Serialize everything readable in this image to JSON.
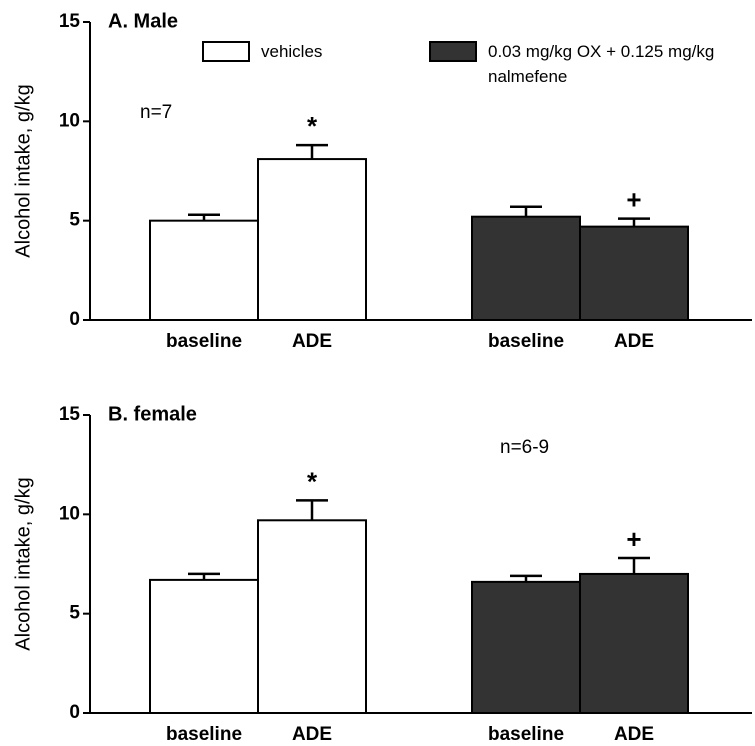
{
  "chart_data": [
    {
      "type": "bar",
      "title": "A. Male",
      "y_label": "Alcohol intake, g/kg",
      "n_label": "n=7",
      "categories": [
        "baseline",
        "ADE"
      ],
      "series": [
        {
          "name": "vehicles",
          "color": "#ffffff",
          "values": [
            5.0,
            8.1
          ],
          "errors": [
            0.3,
            0.7
          ],
          "markers": [
            null,
            "*"
          ]
        },
        {
          "name": "0.03 mg/kg OX + 0.125 mg/kg nalmefene",
          "color": "#333333",
          "values": [
            5.2,
            4.7
          ],
          "errors": [
            0.5,
            0.4
          ],
          "markers": [
            null,
            "+"
          ]
        }
      ],
      "ylim": [
        0,
        15
      ],
      "yticks": [
        0,
        5,
        10,
        15
      ],
      "legend": "top"
    },
    {
      "type": "bar",
      "title": "B. female",
      "y_label": "Alcohol intake, g/kg",
      "n_label": "n=6-9",
      "categories": [
        "baseline",
        "ADE"
      ],
      "series": [
        {
          "name": "vehicles",
          "color": "#ffffff",
          "values": [
            6.7,
            9.7
          ],
          "errors": [
            0.3,
            1.0
          ],
          "markers": [
            null,
            "*"
          ]
        },
        {
          "name": "0.03 mg/kg OX + 0.125 mg/kg nalmefene",
          "color": "#333333",
          "values": [
            6.6,
            7.0
          ],
          "errors": [
            0.3,
            0.8
          ],
          "markers": [
            null,
            "+"
          ]
        }
      ],
      "ylim": [
        0,
        15
      ],
      "yticks": [
        0,
        5,
        10,
        15
      ]
    }
  ]
}
